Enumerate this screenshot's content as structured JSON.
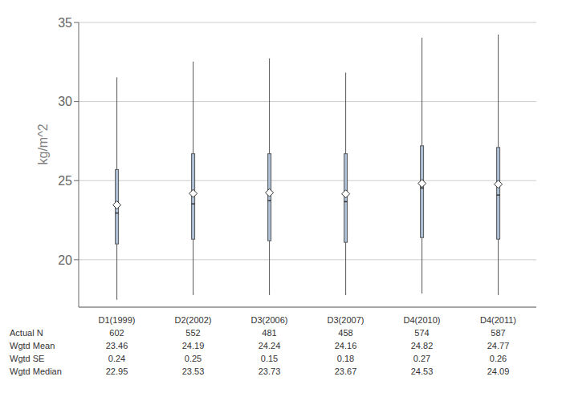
{
  "chart_data": {
    "type": "box",
    "y_label": "kg/m^2",
    "categories": [
      "D1(1999)",
      "D2(2002)",
      "D3(2006)",
      "D3(2007)",
      "D4(2010)",
      "D4(2011)"
    ],
    "whisker_low": [
      17.5,
      17.8,
      17.8,
      17.8,
      17.9,
      17.8
    ],
    "q1": [
      21.0,
      21.3,
      21.2,
      21.1,
      21.4,
      21.3
    ],
    "median": [
      22.95,
      23.53,
      23.73,
      23.67,
      24.53,
      24.09
    ],
    "q3": [
      25.7,
      26.7,
      26.7,
      26.7,
      27.2,
      27.1
    ],
    "whisker_high": [
      31.5,
      32.5,
      32.7,
      31.8,
      34.0,
      34.2
    ],
    "mean": [
      23.46,
      24.19,
      24.24,
      24.16,
      24.82,
      24.77
    ],
    "color": "#adc0d8",
    "ylim": [
      17,
      35
    ],
    "yticks": [
      20,
      25,
      30,
      35
    ],
    "grid": true,
    "table": [
      {
        "label": "Actual N",
        "values": [
          602,
          552,
          481,
          458,
          574,
          587
        ]
      },
      {
        "label": "Wgtd Mean",
        "values": [
          23.46,
          24.19,
          24.24,
          24.16,
          24.82,
          24.77
        ]
      },
      {
        "label": "Wgtd SE",
        "values": [
          0.24,
          0.25,
          0.15,
          0.18,
          0.27,
          0.26
        ]
      },
      {
        "label": "Wgtd Median",
        "values": [
          22.95,
          23.53,
          23.73,
          23.67,
          24.53,
          24.09
        ]
      }
    ]
  }
}
